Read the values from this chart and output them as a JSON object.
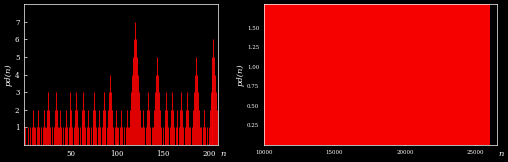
{
  "background_color": "#000000",
  "bar_color": "#ff0000",
  "left_ylabel": "pd(n)",
  "right_ylabel": "pd(n)",
  "left_xlim": [
    0,
    210
  ],
  "left_ylim": [
    0,
    8
  ],
  "right_xlim": [
    10000,
    26500
  ],
  "right_ylim": [
    0,
    1.8
  ],
  "left_xticks": [
    50,
    100,
    150,
    200
  ],
  "right_xticks": [
    10000,
    15000,
    20000,
    25000
  ],
  "left_yticks": [
    1,
    2,
    3,
    4,
    5,
    6,
    7
  ],
  "right_yticks": [
    0.25,
    0.5,
    0.75,
    1.0,
    1.25,
    1.5
  ],
  "text_color": "#ffffff",
  "label_fontsize": 6,
  "tick_fontsize": 5
}
